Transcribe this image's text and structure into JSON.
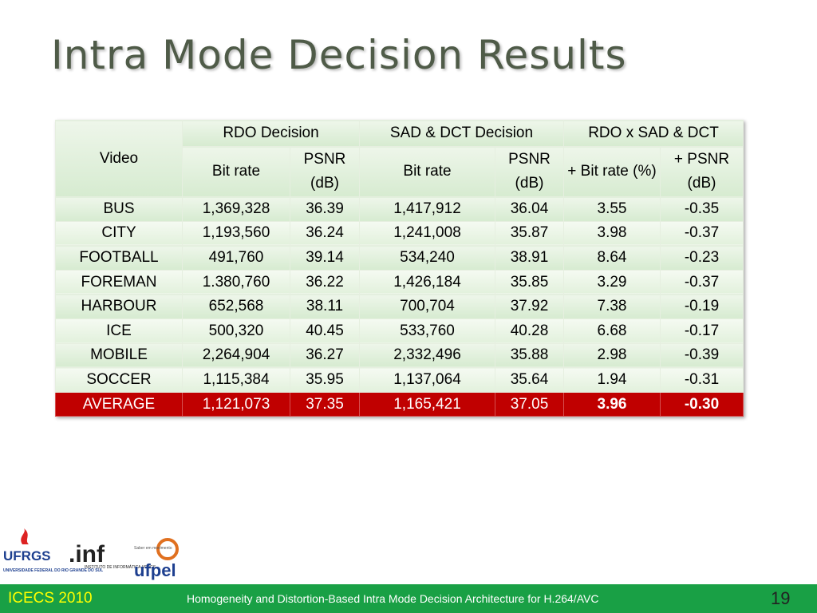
{
  "title": "Intra Mode Decision Results",
  "table": {
    "header_top": [
      "Video",
      "RDO Decision",
      "SAD & DCT Decision",
      "RDO x SAD & DCT"
    ],
    "header_sub": [
      "Bit rate",
      "PSNR (dB)",
      "Bit rate",
      "PSNR (dB)",
      "+ Bit rate (%)",
      "+ PSNR (dB)"
    ],
    "rows": [
      [
        "BUS",
        "1,369,328",
        "36.39",
        "1,417,912",
        "36.04",
        "3.55",
        "-0.35"
      ],
      [
        "CITY",
        "1,193,560",
        "36.24",
        "1,241,008",
        "35.87",
        "3.98",
        "-0.37"
      ],
      [
        "FOOTBALL",
        "491,760",
        "39.14",
        "534,240",
        "38.91",
        "8.64",
        "-0.23"
      ],
      [
        "FOREMAN",
        "1.380,760",
        "36.22",
        "1,426,184",
        "35.85",
        "3.29",
        "-0.37"
      ],
      [
        "HARBOUR",
        "652,568",
        "38.11",
        "700,704",
        "37.92",
        "7.38",
        "-0.19"
      ],
      [
        "ICE",
        "500,320",
        "40.45",
        "533,760",
        "40.28",
        "6.68",
        "-0.17"
      ],
      [
        "MOBILE",
        "2,264,904",
        "36.27",
        "2,332,496",
        "35.88",
        "2.98",
        "-0.39"
      ],
      [
        "SOCCER",
        "1,115,384",
        "35.95",
        "1,137,064",
        "35.64",
        "1.94",
        "-0.31"
      ]
    ],
    "average": [
      "AVERAGE",
      "1,121,073",
      "37.35",
      "1,165,421",
      "37.05",
      "3.96",
      "-0.30"
    ]
  },
  "logos": {
    "ufrgs": "UFRGS",
    "ufrgs_full": "UNIVERSIDADE FEDERAL DO RIO GRANDE DO SUL",
    "inf": ".inf",
    "inf_full": "INSTITUTO DE INFORMÁTICA UFRGS",
    "ufpel_motto": "Saber em movimento",
    "ufpel": "ufpel"
  },
  "footer": {
    "left": "ICECS 2010",
    "center": "Homogeneity and Distortion-Based Intra Mode Decision Architecture for H.264/AVC",
    "page": "19"
  }
}
